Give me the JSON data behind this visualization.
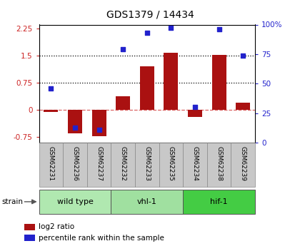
{
  "title": "GDS1379 / 14434",
  "samples": [
    "GSM62231",
    "GSM62236",
    "GSM62237",
    "GSM62232",
    "GSM62233",
    "GSM62235",
    "GSM62234",
    "GSM62238",
    "GSM62239"
  ],
  "log2_ratio": [
    -0.05,
    -0.65,
    -0.72,
    0.38,
    1.2,
    1.57,
    -0.2,
    1.52,
    0.2
  ],
  "percentile": [
    46,
    13,
    11,
    79,
    93,
    97,
    30,
    96,
    74
  ],
  "groups": [
    {
      "label": "wild type",
      "start": 0,
      "end": 3,
      "color": "#90d890"
    },
    {
      "label": "vhl-1",
      "start": 3,
      "end": 6,
      "color": "#90d890"
    },
    {
      "label": "hif-1",
      "start": 6,
      "end": 9,
      "color": "#44bb44"
    }
  ],
  "bar_color": "#aa1111",
  "dot_color": "#2222cc",
  "ylim_left": [
    -0.9,
    2.35
  ],
  "ylim_right": [
    0,
    100
  ],
  "yticks_left": [
    -0.75,
    0.0,
    0.75,
    1.5,
    2.25
  ],
  "ytick_labels_left": [
    "-0.75",
    "0",
    "0.75",
    "1.5",
    "2.25"
  ],
  "yticks_right": [
    0,
    25,
    50,
    75,
    100
  ],
  "ytick_labels_right": [
    "0",
    "25",
    "50",
    "75",
    "100%"
  ],
  "hlines_dotted": [
    0.75,
    1.5
  ],
  "hline_dashed": 0.0,
  "strain_label": "strain",
  "legend_items": [
    {
      "label": "log2 ratio",
      "color": "#aa1111"
    },
    {
      "label": "percentile rank within the sample",
      "color": "#2222cc"
    }
  ]
}
